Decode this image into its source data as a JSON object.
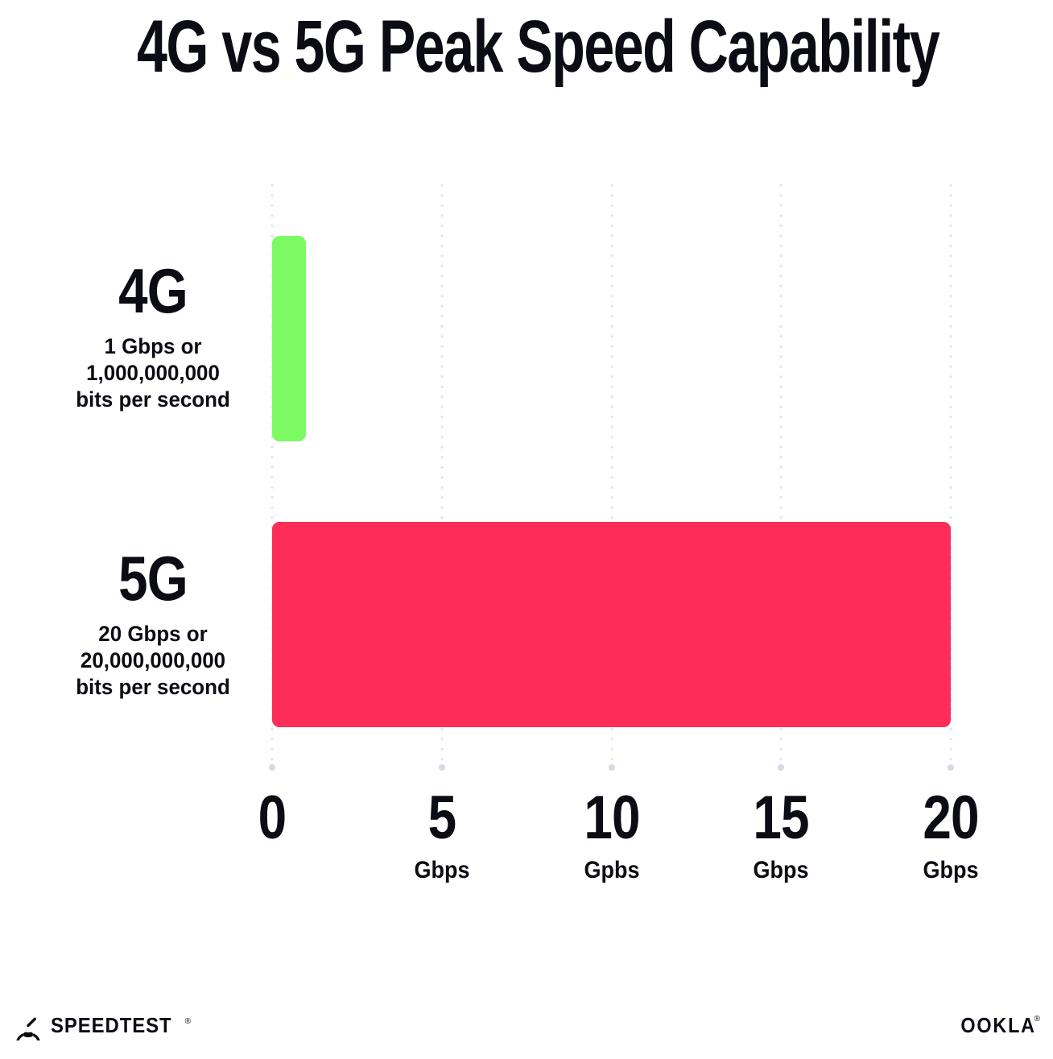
{
  "chart_data": {
    "type": "bar",
    "orientation": "horizontal",
    "title": "4G vs 5G Peak Speed Capability",
    "categories": [
      "4G",
      "5G"
    ],
    "values": [
      1,
      20
    ],
    "value_unit": "Gbps",
    "xlim": [
      0,
      20
    ],
    "grid": "vertical-dotted",
    "legend": "none",
    "rows": [
      {
        "category": "4G",
        "value_gbps": 1,
        "color": "#7CFA64",
        "sublabel_lines": [
          "1 Gbps or",
          "1,000,000,000",
          "bits per second"
        ]
      },
      {
        "category": "5G",
        "value_gbps": 20,
        "color": "#FC2E58",
        "sublabel_lines": [
          "20 Gbps or",
          "20,000,000,000",
          "bits per second"
        ]
      }
    ],
    "x_ticks": [
      {
        "value": 0,
        "label": "0",
        "unit": ""
      },
      {
        "value": 5,
        "label": "5",
        "unit": "Gbps"
      },
      {
        "value": 10,
        "label": "10",
        "unit": "Gpbs"
      },
      {
        "value": 15,
        "label": "15",
        "unit": "Gbps"
      },
      {
        "value": 20,
        "label": "20",
        "unit": "Gbps"
      }
    ]
  },
  "colors": {
    "bar_4g": "#7CFA64",
    "bar_5g": "#FC2E58",
    "text": "#0B0C14",
    "gridline_dot": "#DFE1EB",
    "background": "#FFFFFF"
  },
  "footer": {
    "speedtest_logo_text": "SPEEDTEST",
    "speedtest_trademark": "®",
    "ookla_logo_text": "OOKLA",
    "ookla_trademark": "®"
  },
  "icons": {
    "speedometer": "speedometer-gauge-icon"
  }
}
